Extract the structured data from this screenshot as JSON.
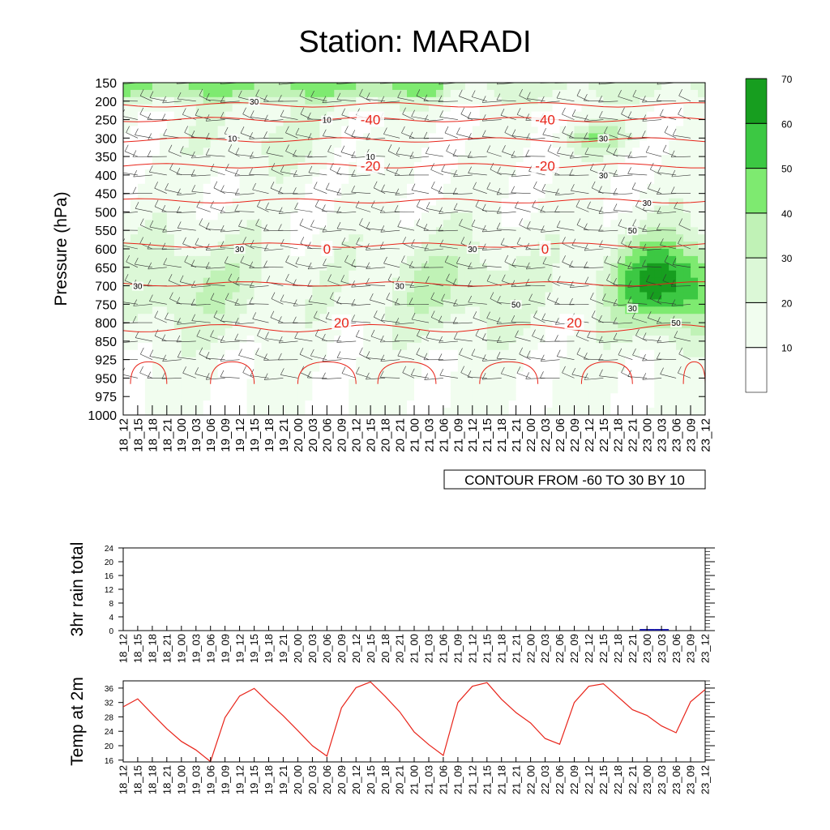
{
  "title": "Station: MARADI",
  "time_labels": [
    "18_12",
    "18_15",
    "18_18",
    "18_21",
    "19_00",
    "19_03",
    "19_06",
    "19_09",
    "19_12",
    "19_15",
    "19_18",
    "19_21",
    "20_00",
    "20_03",
    "20_06",
    "20_09",
    "20_12",
    "20_15",
    "20_18",
    "20_21",
    "21_00",
    "21_03",
    "21_06",
    "21_09",
    "21_12",
    "21_15",
    "21_18",
    "21_21",
    "22_00",
    "22_03",
    "22_06",
    "22_09",
    "22_12",
    "22_15",
    "22_18",
    "22_21",
    "23_00",
    "23_03",
    "23_06",
    "23_09",
    "23_12"
  ],
  "chart_data": [
    {
      "type": "heatmap",
      "name": "upper-air time-pressure section",
      "ylabel": "Pressure (hPa)",
      "y_ticks": [
        150,
        200,
        250,
        300,
        350,
        400,
        450,
        500,
        550,
        600,
        650,
        700,
        750,
        800,
        850,
        925,
        950,
        975,
        1000
      ],
      "colorbar": {
        "levels": [
          10,
          20,
          30,
          40,
          50,
          60,
          70
        ],
        "colors": [
          "#ffffff",
          "#f1fdef",
          "#dcf8d7",
          "#c0f2b6",
          "#7eea70",
          "#3cc843",
          "#179e1f"
        ]
      },
      "temperature_contour_labels": [
        "-40",
        "-40",
        "-20",
        "-20",
        "0",
        "0",
        "20",
        "20"
      ],
      "wind_speed_contour_labels": [
        "30",
        "10",
        "10",
        "10",
        "30",
        "30",
        "30",
        "30",
        "50",
        "30",
        "30",
        "30",
        "50",
        "30",
        "50"
      ],
      "contour_info": "CONTOUR FROM -60 TO 30 BY 10"
    },
    {
      "type": "bar",
      "name": "rain",
      "ylabel": "3hr rain total",
      "ylim": [
        0,
        24
      ],
      "y_ticks": [
        0,
        4,
        8,
        12,
        16,
        20,
        24
      ],
      "values": [
        0,
        0,
        0,
        0,
        0,
        0,
        0,
        0,
        0,
        0,
        0,
        0,
        0,
        0,
        0,
        0,
        0,
        0,
        0,
        0,
        0,
        0,
        0,
        0,
        0,
        0,
        0,
        0,
        0,
        0,
        0,
        0,
        0,
        0,
        0,
        0,
        0.3,
        0.3,
        0,
        0,
        0
      ]
    },
    {
      "type": "line",
      "name": "temperature",
      "ylabel": "Temp at 2m",
      "ylim": [
        15.5,
        38
      ],
      "y_ticks": [
        16,
        20,
        24,
        28,
        32,
        36
      ],
      "values": [
        30.8,
        33.0,
        28.8,
        24.7,
        21.2,
        18.8,
        15.6,
        27.8,
        33.8,
        35.9,
        32.0,
        28.3,
        24.2,
        20.0,
        17.1,
        30.5,
        36.1,
        37.7,
        33.7,
        29.4,
        23.8,
        20.3,
        17.3,
        32.0,
        36.5,
        37.5,
        32.9,
        29.2,
        26.3,
        22.0,
        20.4,
        32.0,
        36.5,
        37.2,
        33.6,
        30.0,
        28.4,
        25.5,
        23.6,
        32.2,
        35.6
      ]
    }
  ]
}
